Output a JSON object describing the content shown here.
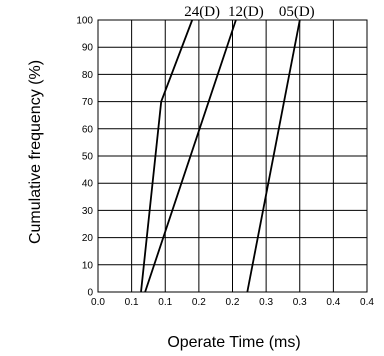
{
  "chart_data": {
    "type": "line",
    "xlabel": "Operate Time (ms)",
    "ylabel": "Cumulative frequency (%)",
    "xlim": [
      0.0,
      0.4
    ],
    "ylim": [
      0,
      100
    ],
    "x_ticks": [
      "0.0",
      "0.1",
      "0.1",
      "0.2",
      "0.2",
      "0.3",
      "0.3",
      "0.4",
      "0.4"
    ],
    "x_tick_values": [
      0.0,
      0.05,
      0.1,
      0.15,
      0.2,
      0.25,
      0.3,
      0.35,
      0.4
    ],
    "y_ticks": [
      "0",
      "10",
      "20",
      "30",
      "40",
      "50",
      "60",
      "70",
      "80",
      "90",
      "100"
    ],
    "y_tick_values": [
      0,
      10,
      20,
      30,
      40,
      50,
      60,
      70,
      80,
      90,
      100
    ],
    "grid": true,
    "series": [
      {
        "name": "24(D)",
        "points": [
          [
            0.064,
            0
          ],
          [
            0.094,
            70
          ],
          [
            0.14,
            100
          ]
        ]
      },
      {
        "name": "12(D)",
        "points": [
          [
            0.07,
            0
          ],
          [
            0.205,
            100
          ]
        ]
      },
      {
        "name": "05(D)",
        "points": [
          [
            0.222,
            0
          ],
          [
            0.3,
            100
          ]
        ]
      }
    ],
    "series_labels": [
      "24(D)",
      "12(D)",
      "05(D)"
    ]
  }
}
